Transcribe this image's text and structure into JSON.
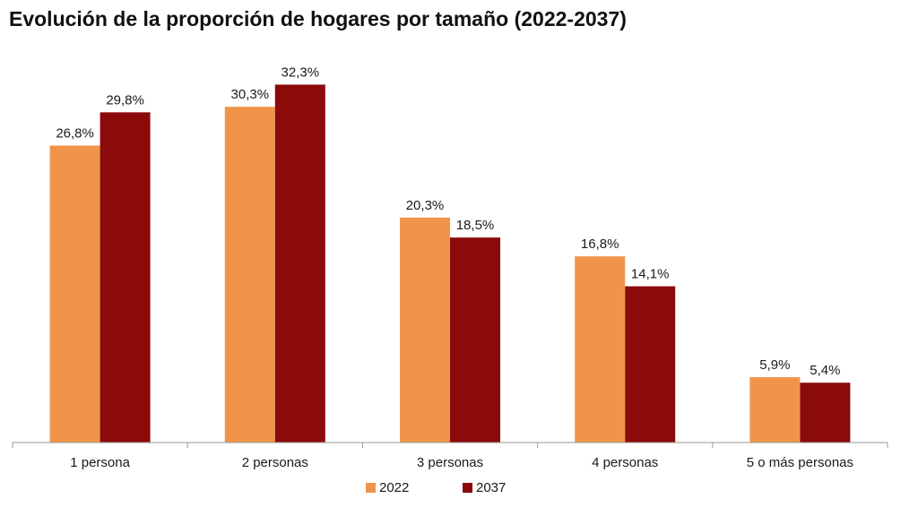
{
  "chart_data": {
    "type": "bar",
    "title": "Evolución de la proporción de hogares por tamaño (2022-2037)",
    "categories": [
      "1 persona",
      "2 personas",
      "3 personas",
      "4 personas",
      "5 o más personas"
    ],
    "series": [
      {
        "name": "2022",
        "color": "#F0944A",
        "values": [
          26.8,
          30.3,
          20.3,
          16.8,
          5.9
        ],
        "labels": [
          "26,8%",
          "30,3%",
          "20,3%",
          "16,8%",
          "5,9%"
        ]
      },
      {
        "name": "2037",
        "color": "#8B0A0A",
        "values": [
          29.8,
          32.3,
          18.5,
          14.1,
          5.4
        ],
        "labels": [
          "29,8%",
          "32,3%",
          "18,5%",
          "14,1%",
          "5,4%"
        ]
      }
    ],
    "ylim": [
      0,
      35
    ],
    "grid": false,
    "legend_position": "bottom-center"
  }
}
